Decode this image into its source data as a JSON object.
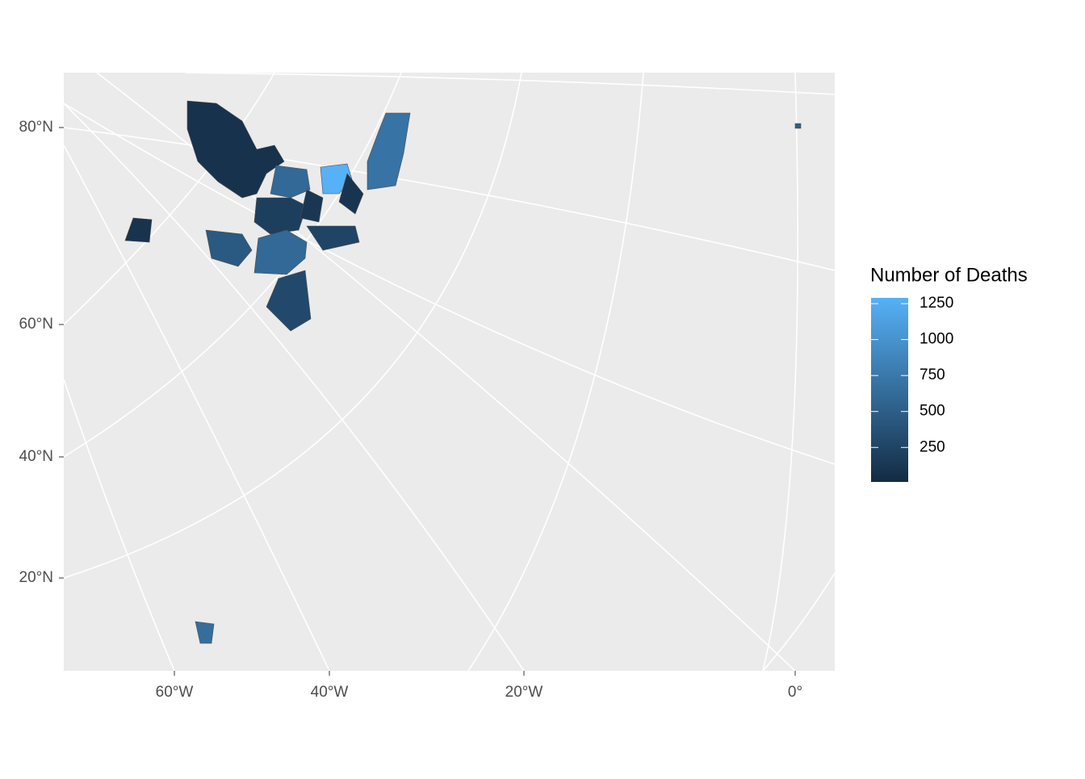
{
  "map": {
    "x_axis": {
      "ticks": [
        {
          "value": -60,
          "label": "60°W"
        },
        {
          "value": -40,
          "label": "40°W"
        },
        {
          "value": -20,
          "label": "20°W"
        },
        {
          "value": 0,
          "label": "0°"
        }
      ]
    },
    "y_axis": {
      "ticks": [
        {
          "value": 80,
          "label": "80°N"
        },
        {
          "value": 60,
          "label": "60°N"
        },
        {
          "value": 40,
          "label": "40°N"
        },
        {
          "value": 20,
          "label": "20°N"
        }
      ]
    },
    "legend": {
      "title": "Number of Deaths",
      "limits": [
        10,
        1290
      ],
      "ticks": [
        250,
        500,
        750,
        1000,
        1250
      ],
      "colors": {
        "low": "#132B43",
        "high": "#56B1F7"
      }
    },
    "regions": {
      "values": [
        80,
        600,
        1290,
        700,
        200,
        600,
        300,
        90,
        450,
        250,
        650,
        500,
        120,
        100
      ]
    }
  }
}
